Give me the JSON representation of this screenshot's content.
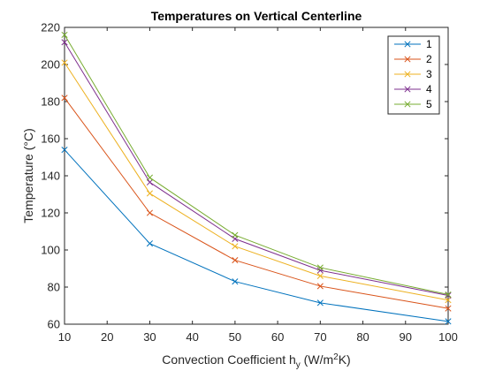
{
  "chart_data": {
    "type": "line",
    "title": "Temperatures on Vertical Centerline",
    "xlabel": {
      "prefix": "Convection Coefficient h",
      "subscript": "y",
      "middle": " (W/m",
      "superscript": "2",
      "suffix": "K)"
    },
    "ylabel": "Temperature (°C)",
    "xlim": [
      10,
      100
    ],
    "ylim": [
      60,
      220
    ],
    "xticks": [
      10,
      20,
      30,
      40,
      50,
      60,
      70,
      80,
      90,
      100
    ],
    "yticks": [
      60,
      80,
      100,
      120,
      140,
      160,
      180,
      200,
      220
    ],
    "x": [
      10,
      30,
      50,
      70,
      100
    ],
    "marker": "x",
    "grid": false,
    "legend_position": "top-right",
    "series": [
      {
        "name": "1",
        "color": "#0072BD",
        "values": [
          154,
          103.5,
          83,
          71.5,
          61.5
        ]
      },
      {
        "name": "2",
        "color": "#D95319",
        "values": [
          182,
          120,
          94.5,
          80.5,
          68.5
        ]
      },
      {
        "name": "3",
        "color": "#EDB120",
        "values": [
          201,
          130.5,
          102,
          86,
          73
        ]
      },
      {
        "name": "4",
        "color": "#7E2F8E",
        "values": [
          212,
          136.5,
          106,
          89,
          75.5
        ]
      },
      {
        "name": "5",
        "color": "#77AC30",
        "values": [
          216,
          139,
          108,
          90.5,
          76
        ]
      }
    ]
  }
}
